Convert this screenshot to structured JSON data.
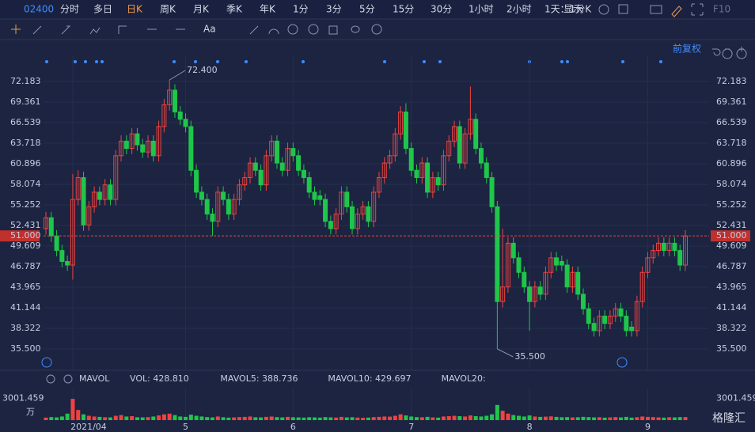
{
  "toolbar": {
    "code": "02400",
    "periods": [
      "分时",
      "多日",
      "日K",
      "周K",
      "月K",
      "季K",
      "年K",
      "1分",
      "3分",
      "5分",
      "15分",
      "30分",
      "1小时",
      "2小时",
      "1天：1分K"
    ],
    "active": 2,
    "display": "显示",
    "f10": "F10"
  },
  "tools": {
    "text": "Aa",
    "adjust": "前复权"
  },
  "chart_data": [
    {
      "type": "candlestick",
      "up_color": "#f0433f",
      "down_color": "#1fc64a",
      "grid": true,
      "categories": [
        null,
        null,
        null,
        null,
        null,
        "2021/04",
        null,
        null,
        null,
        null,
        null,
        null,
        null,
        null,
        null,
        null,
        null,
        null,
        null,
        null,
        null,
        null,
        null,
        null,
        null,
        null,
        "5",
        null,
        null,
        null,
        null,
        null,
        null,
        null,
        null,
        null,
        null,
        null,
        null,
        null,
        null,
        null,
        null,
        null,
        null,
        null,
        "6",
        null,
        null,
        null,
        null,
        null,
        null,
        null,
        null,
        null,
        null,
        null,
        null,
        null,
        null,
        null,
        null,
        null,
        null,
        null,
        null,
        null,
        "7",
        null,
        null,
        null,
        null,
        null,
        null,
        null,
        null,
        null,
        null,
        null,
        null,
        null,
        null,
        null,
        null,
        null,
        null,
        null,
        null,
        null,
        "8",
        null,
        null,
        null,
        null,
        null,
        null,
        null,
        null,
        null,
        null,
        null,
        null,
        null,
        null,
        null,
        null,
        null,
        null,
        null,
        null,
        null,
        "9",
        null,
        null,
        null,
        null,
        null,
        null,
        null
      ],
      "open": [
        52,
        53.5,
        51,
        49,
        47.5,
        47,
        56,
        59,
        52.5,
        55,
        57,
        56,
        58,
        56,
        62,
        64,
        63,
        65,
        63.5,
        62.5,
        64,
        62,
        66,
        69,
        71,
        68,
        67,
        66,
        60,
        57,
        56,
        54,
        53,
        57,
        56,
        54,
        56,
        58,
        59,
        61,
        60,
        58,
        62,
        64,
        61,
        60,
        63,
        62,
        60,
        59,
        57,
        56.5,
        56,
        53,
        52,
        54,
        57,
        55,
        52,
        54,
        55,
        53,
        57,
        59,
        61,
        62,
        65,
        68,
        63,
        60,
        59,
        61,
        57,
        59,
        58,
        62,
        64,
        66,
        61,
        65,
        67,
        63,
        61,
        59,
        55,
        42,
        44,
        50,
        48,
        46,
        44,
        42,
        44,
        43,
        46,
        48,
        47.5,
        47,
        44,
        46,
        43,
        41,
        39,
        38,
        40,
        39,
        40,
        41,
        40,
        38.5,
        38,
        42,
        46,
        48,
        49,
        50,
        49,
        50,
        49,
        47
      ],
      "high": [
        54.3,
        54.3,
        51.8,
        49.8,
        48.3,
        59.5,
        60,
        59.8,
        55.8,
        57.8,
        57.8,
        58.8,
        58.8,
        62.8,
        64.8,
        64.8,
        65.8,
        65.8,
        64.3,
        64.8,
        64.8,
        66.8,
        69.8,
        72.4,
        71.8,
        68.8,
        67.8,
        66.8,
        60.8,
        57.8,
        56.8,
        54.8,
        57.8,
        57.8,
        56.8,
        56.8,
        58.8,
        59.8,
        61.8,
        61.8,
        60.8,
        62.8,
        64.8,
        64.8,
        61.8,
        63.8,
        63.8,
        62.8,
        60.8,
        59.8,
        57.8,
        57.3,
        56.8,
        53.8,
        54.8,
        57.8,
        57.8,
        55.8,
        54.8,
        55.8,
        55.8,
        57.8,
        59.8,
        61.8,
        62.8,
        65.8,
        68.8,
        69.2,
        63.8,
        60.8,
        61.8,
        61.8,
        59.8,
        59.8,
        62.8,
        64.8,
        66.8,
        66.8,
        65.8,
        71.5,
        67.8,
        63.8,
        61.8,
        59.8,
        55.8,
        52,
        50.8,
        50.8,
        48.8,
        46.8,
        44.8,
        44.8,
        44.8,
        46.8,
        48.8,
        48.8,
        48.3,
        47.8,
        46.8,
        46.8,
        43.8,
        41.8,
        39.8,
        40.8,
        40.8,
        40.8,
        41.8,
        41.8,
        40.8,
        39.3,
        42.8,
        46.8,
        48.8,
        49.8,
        50.8,
        50.8,
        50.8,
        50.8,
        49.8,
        51.8
      ],
      "low": [
        51.2,
        50.2,
        48.2,
        46.7,
        46.2,
        45,
        55.2,
        51.7,
        51.7,
        54.2,
        55.2,
        55.2,
        55.2,
        55.2,
        61.2,
        62.2,
        62.2,
        62.7,
        61.7,
        61.7,
        61.2,
        61.2,
        65.2,
        68.2,
        67.2,
        66.2,
        65.2,
        59.2,
        56.2,
        55.2,
        53.2,
        51,
        52.2,
        55.2,
        53.2,
        53.2,
        55.2,
        57.2,
        58.2,
        59.2,
        57.2,
        57.2,
        61.2,
        60.2,
        59.2,
        59.2,
        61.2,
        59.2,
        58.2,
        56.2,
        55.2,
        55.2,
        52.2,
        51.2,
        51.2,
        53.2,
        54.2,
        51.2,
        51.2,
        53.2,
        52.2,
        52.2,
        56.2,
        58.2,
        60.2,
        61.2,
        64.2,
        62.2,
        59.2,
        58.2,
        58.2,
        56.2,
        56.2,
        57.2,
        57.2,
        61.2,
        63.2,
        60.2,
        60.2,
        64.2,
        62.2,
        60.2,
        58.2,
        54.2,
        35.5,
        41.2,
        43.2,
        47.2,
        45.2,
        43.2,
        38,
        41.2,
        42.2,
        42.2,
        45.2,
        46.2,
        46.2,
        43.2,
        43.2,
        42.2,
        40.2,
        38.2,
        37.2,
        37.2,
        38.2,
        38.2,
        39.2,
        39.2,
        37.2,
        37.2,
        37.2,
        41.2,
        45.2,
        47.2,
        48.2,
        48.2,
        48.2,
        48.2,
        46.2,
        46.2
      ],
      "close": [
        53.5,
        51,
        49,
        47.5,
        47,
        56,
        59,
        52.5,
        55,
        57,
        56,
        58,
        56,
        62,
        64,
        63,
        65,
        63.5,
        62.5,
        64,
        62,
        66,
        69,
        71,
        68,
        67,
        66,
        60,
        57,
        56,
        54,
        53,
        57,
        56,
        54,
        56,
        58,
        59,
        61,
        60,
        58,
        62,
        64,
        61,
        60,
        63,
        62,
        60,
        59,
        57,
        56,
        56,
        53,
        52,
        54,
        57,
        55,
        52,
        54,
        55,
        53,
        57,
        59,
        61,
        62,
        65,
        68,
        63,
        60,
        59,
        61,
        57,
        59,
        58,
        62,
        64,
        66,
        61,
        65,
        67,
        63,
        61,
        59,
        55,
        42,
        44,
        50,
        48,
        46,
        44,
        42,
        44,
        43,
        46,
        48,
        47,
        47,
        44,
        46,
        43,
        41,
        39,
        38,
        40,
        39,
        40,
        41,
        40,
        38,
        38,
        42,
        46,
        48,
        49,
        50,
        49,
        50,
        49,
        47,
        51
      ],
      "ylim": [
        32.57,
        75.764
      ],
      "yticks": [
        72.183,
        69.361,
        66.539,
        63.718,
        60.896,
        58.074,
        55.252,
        52.431,
        49.609,
        46.787,
        43.965,
        41.144,
        38.322,
        {
          "value": 35.5,
          "label": "35.500"
        }
      ],
      "price_line": {
        "value": 51,
        "label": "51.000"
      },
      "annotations": [
        {
          "value": 72.4,
          "label": "72.400"
        },
        {
          "value": 35.5,
          "label": "35.500"
        }
      ]
    },
    {
      "type": "bar",
      "unit": "万",
      "legend": [
        {
          "label": "MAVOL",
          "color": "#c7cde0"
        },
        {
          "label": "VOL: 428.810",
          "color": "#f0433f"
        },
        {
          "label": "MAVOL5: 388.736",
          "color": "#f2994a"
        },
        {
          "label": "MAVOL10: 429.697",
          "color": "#3fa9f5"
        },
        {
          "label": "MAVOL20:",
          "color": "#a05ca8"
        }
      ],
      "values": [
        350,
        420,
        380,
        500,
        900,
        2950,
        1400,
        800,
        600,
        500,
        450,
        400,
        380,
        600,
        700,
        500,
        550,
        400,
        380,
        420,
        500,
        650,
        800,
        900,
        700,
        500,
        450,
        750,
        600,
        500,
        420,
        380,
        500,
        400,
        350,
        380,
        420,
        450,
        500,
        400,
        380,
        450,
        500,
        420,
        380,
        450,
        400,
        380,
        350,
        400,
        380,
        350,
        420,
        380,
        350,
        450,
        380,
        400,
        350,
        320,
        350,
        420,
        450,
        500,
        480,
        600,
        800,
        650,
        500,
        420,
        400,
        450,
        380,
        350,
        500,
        550,
        600,
        550,
        500,
        650,
        550,
        500,
        600,
        800,
        2100,
        1300,
        900,
        700,
        600,
        500,
        650,
        500,
        450,
        480,
        520,
        450,
        400,
        420,
        380,
        400,
        450,
        420,
        380,
        400,
        350,
        380,
        420,
        380,
        450,
        350,
        400,
        500,
        450,
        420,
        380,
        350,
        400,
        380,
        420,
        430
      ],
      "ylim": [
        0,
        3723
      ],
      "yticks": [
        3001.459
      ]
    }
  ],
  "brand": "格隆汇"
}
